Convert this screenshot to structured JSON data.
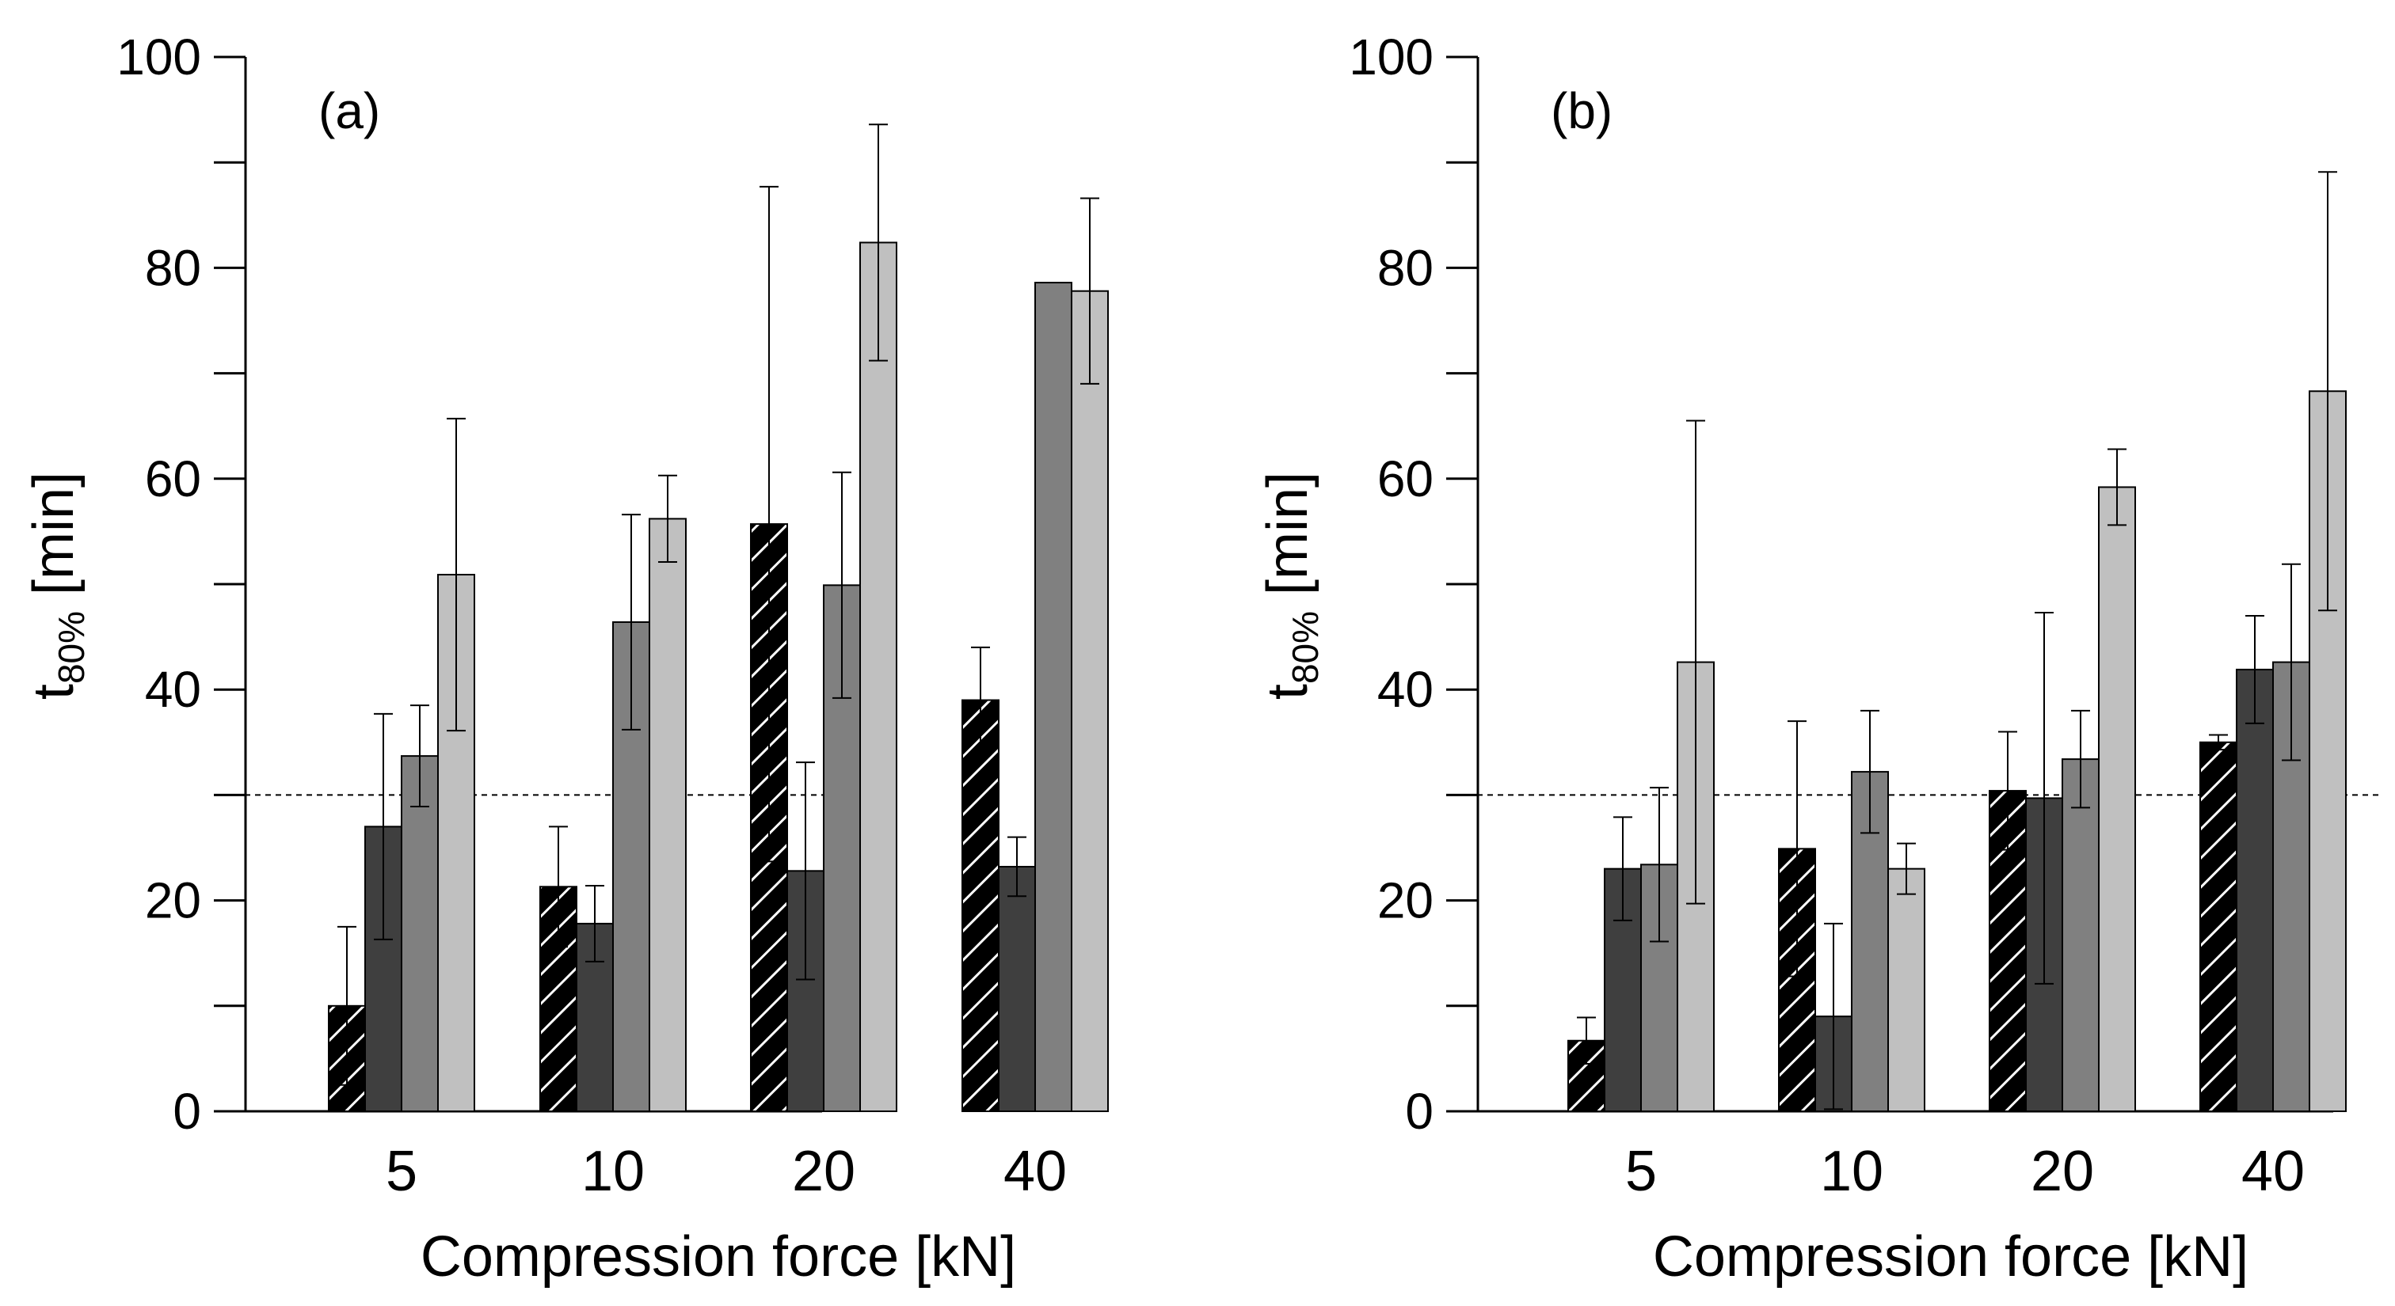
{
  "chart_data": [
    {
      "type": "bar",
      "panel_label": "(a)",
      "categories": [
        "5",
        "10",
        "20",
        "40"
      ],
      "xlabel": "Compression force [kN]",
      "ylabel_main": "t",
      "ylabel_sub": "80%",
      "ylabel_unit": " [min]",
      "ylim": [
        0,
        100
      ],
      "yticks": [
        "0",
        "20",
        "40",
        "60",
        "80",
        "100"
      ],
      "reference_line": 30,
      "series": [
        {
          "name": "series-1",
          "fill": "#000000",
          "hatched": true,
          "values": [
            10,
            21.3,
            55.7,
            39
          ],
          "errors": [
            7.5,
            5.7,
            32,
            5
          ]
        },
        {
          "name": "series-2",
          "fill": "#3f3f3f",
          "hatched": false,
          "values": [
            27,
            17.8,
            22.8,
            23.2
          ],
          "errors": [
            10.7,
            3.6,
            10.3,
            2.8
          ]
        },
        {
          "name": "series-3",
          "fill": "#808080",
          "hatched": false,
          "values": [
            33.7,
            46.4,
            49.9,
            78.6
          ],
          "errors": [
            4.8,
            10.2,
            10.7,
            0
          ]
        },
        {
          "name": "series-4",
          "fill": "#c0c0c0",
          "hatched": false,
          "values": [
            50.9,
            56.2,
            82.4,
            77.8
          ],
          "errors": [
            14.8,
            4.1,
            11.2,
            8.8
          ]
        }
      ]
    },
    {
      "type": "bar",
      "panel_label": "(b)",
      "categories": [
        "5",
        "10",
        "20",
        "40"
      ],
      "xlabel": "Compression force [kN]",
      "ylabel_main": "t",
      "ylabel_sub": "80%",
      "ylabel_unit": " [min]",
      "ylim": [
        0,
        100
      ],
      "yticks": [
        "0",
        "20",
        "40",
        "60",
        "80",
        "100"
      ],
      "reference_line": 30,
      "series": [
        {
          "name": "series-1",
          "fill": "#000000",
          "hatched": true,
          "values": [
            6.7,
            24.9,
            30.4,
            35
          ],
          "errors": [
            2.2,
            12.1,
            5.6,
            0.7
          ]
        },
        {
          "name": "series-2",
          "fill": "#3f3f3f",
          "hatched": false,
          "values": [
            23,
            9,
            29.7,
            41.9
          ],
          "errors": [
            4.9,
            8.8,
            17.6,
            5.1
          ]
        },
        {
          "name": "series-3",
          "fill": "#808080",
          "hatched": false,
          "values": [
            23.4,
            32.2,
            33.4,
            42.6
          ],
          "errors": [
            7.3,
            5.8,
            4.6,
            9.3
          ]
        },
        {
          "name": "series-4",
          "fill": "#c0c0c0",
          "hatched": false,
          "values": [
            42.6,
            23,
            59.2,
            68.3
          ],
          "errors": [
            22.9,
            2.4,
            3.6,
            20.8
          ]
        }
      ]
    }
  ]
}
